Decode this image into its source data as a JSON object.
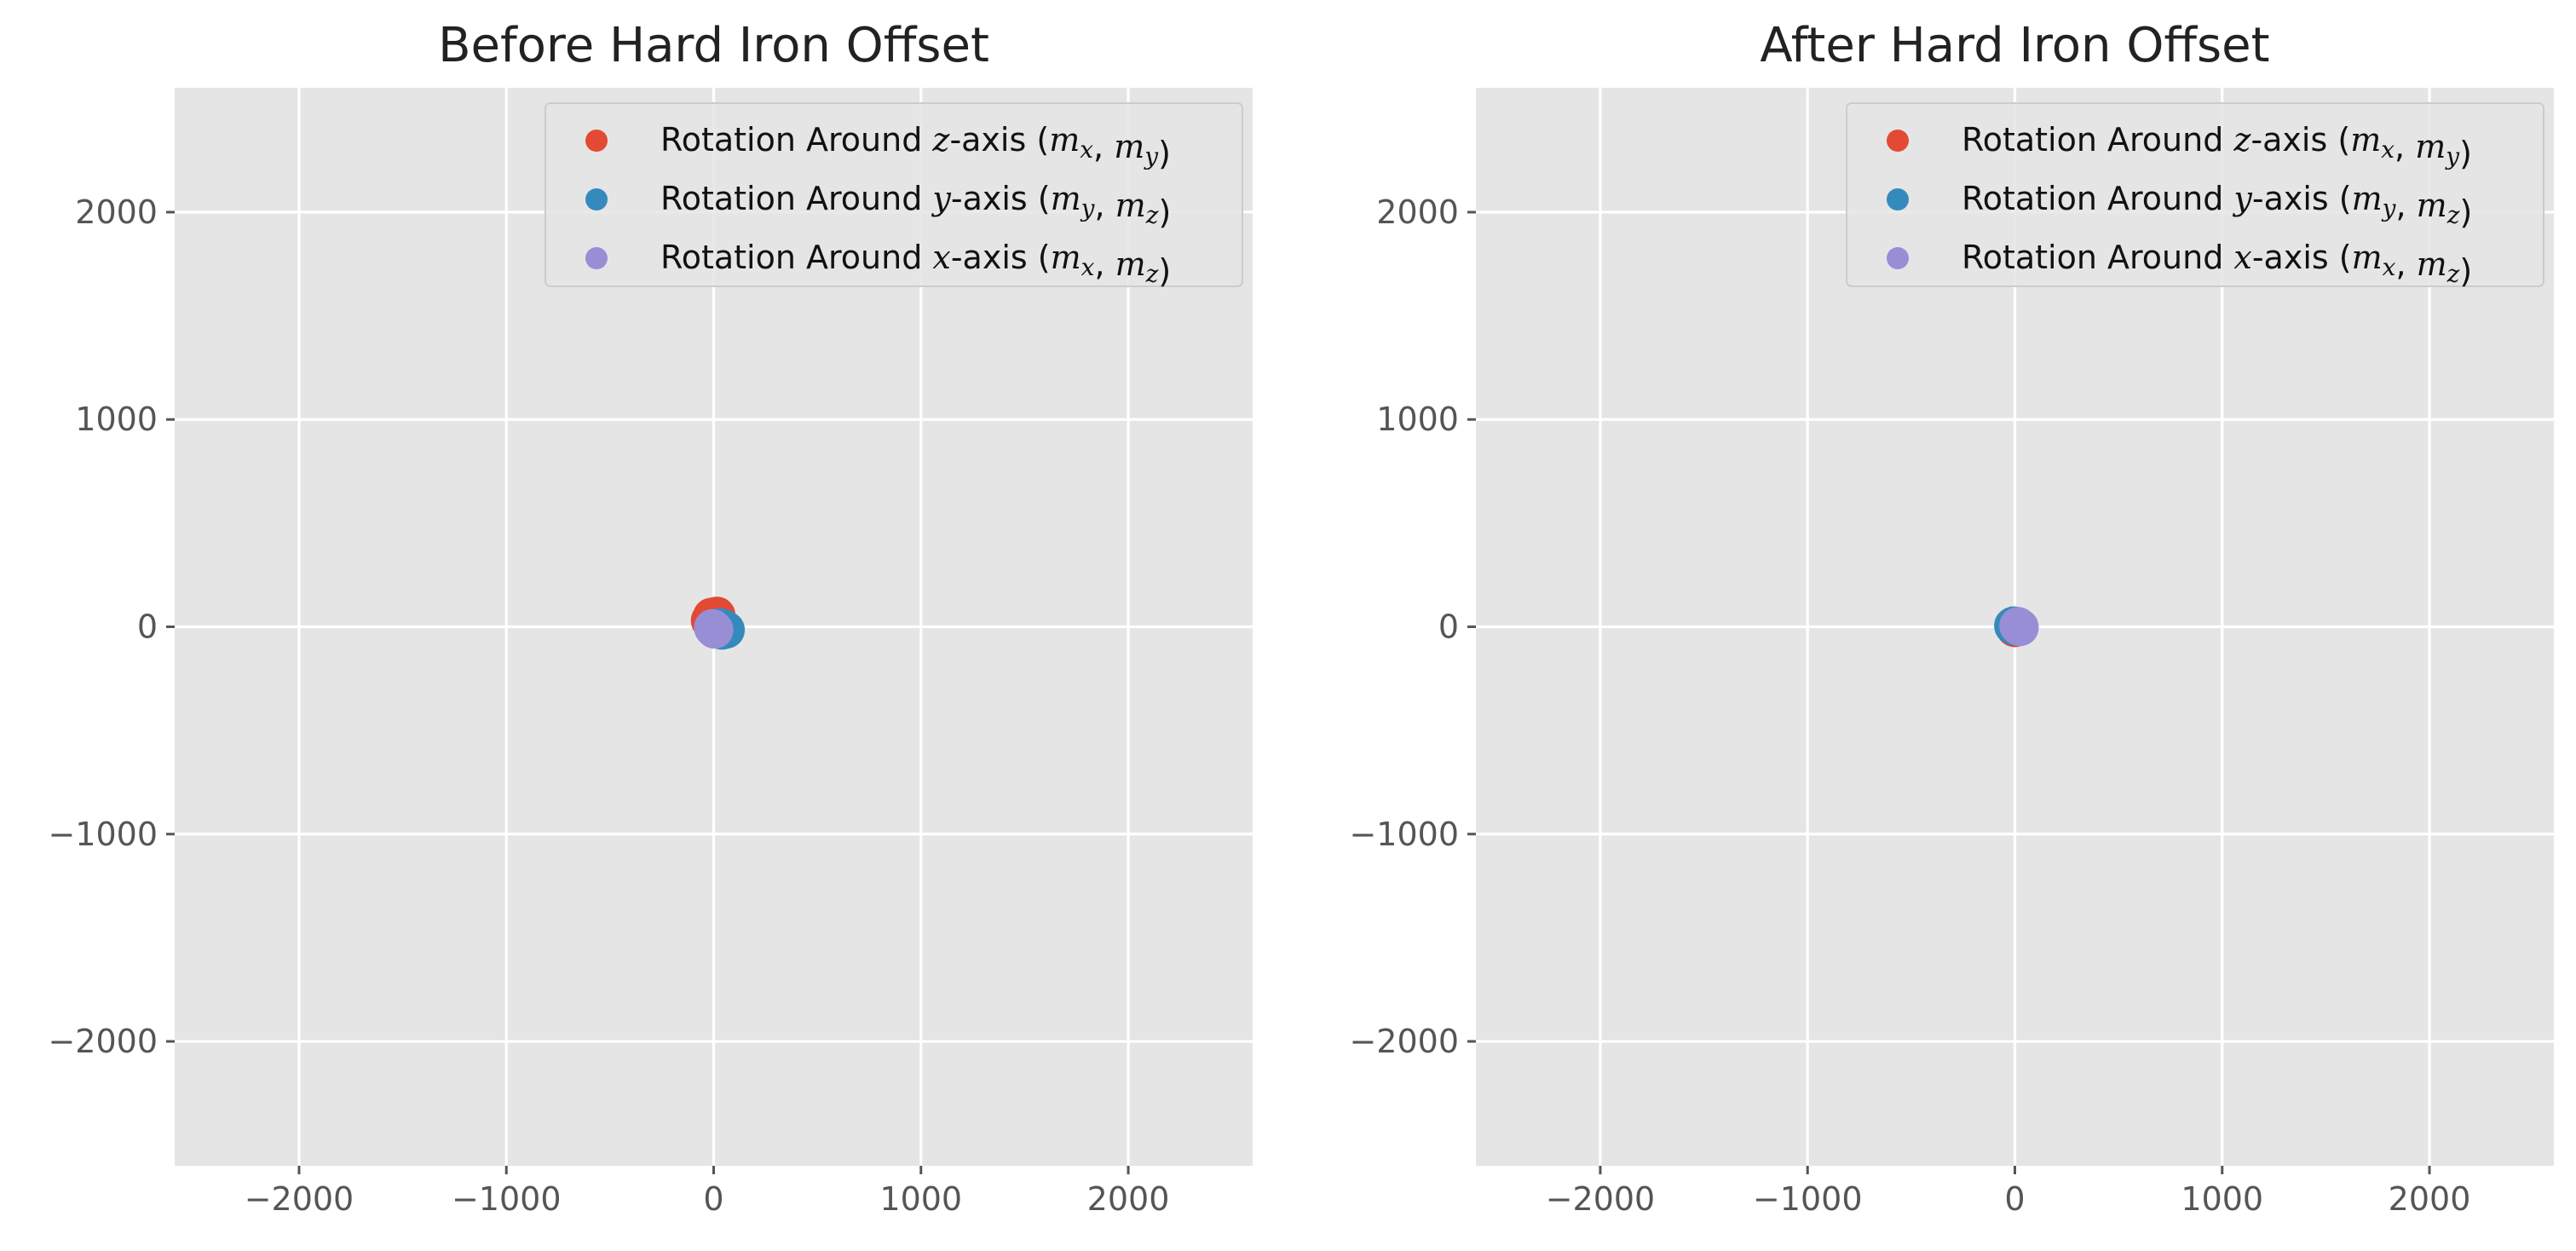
{
  "colors": {
    "background": "#e5e5e5",
    "grid": "#ffffff",
    "tick": "#555555",
    "legend_bg": "#e5e5e5",
    "legend_border": "#cccccc"
  },
  "chart_data": [
    {
      "type": "scatter",
      "title": "Before Hard Iron Offset",
      "xlim": [
        -2600,
        2600
      ],
      "ylim": [
        -2600,
        2600
      ],
      "xticks": [
        -2000,
        -1000,
        0,
        1000,
        2000
      ],
      "yticks": [
        -2000,
        -1000,
        0,
        1000,
        2000
      ],
      "xtick_labels": [
        "−2000",
        "−1000",
        "0",
        "1000",
        "2000"
      ],
      "ytick_labels": [
        "−2000",
        "−1000",
        "0",
        "1000",
        "2000"
      ],
      "grid": true,
      "legend_position": "top-right",
      "series": [
        {
          "name": "Rotation Around z-axis (mx, my)",
          "label_parts": [
            "Rotation Around ",
            "z",
            "-axis (",
            "m",
            "x",
            ", ",
            "m",
            "y",
            ")"
          ],
          "color": "#E24A33",
          "points": [
            [
              -10,
              50
            ],
            [
              10,
              40
            ],
            [
              -20,
              30
            ],
            [
              0,
              20
            ],
            [
              15,
              55
            ],
            [
              -5,
              35
            ]
          ]
        },
        {
          "name": "Rotation Around y-axis (my, mz)",
          "label_parts": [
            "Rotation Around ",
            "y",
            "-axis (",
            "m",
            "y",
            ", ",
            "m",
            "z",
            ")"
          ],
          "color": "#348ABD",
          "points": [
            [
              50,
              -10
            ],
            [
              40,
              -20
            ],
            [
              30,
              0
            ],
            [
              60,
              -15
            ],
            [
              45,
              -5
            ]
          ]
        },
        {
          "name": "Rotation Around x-axis (mx, mz)",
          "label_parts": [
            "Rotation Around ",
            "x",
            "-axis (",
            "m",
            "x",
            ", ",
            "m",
            "z",
            ")"
          ],
          "color": "#988ED5",
          "points": [
            [
              0,
              -10
            ],
            [
              5,
              -15
            ],
            [
              -5,
              -5
            ],
            [
              2,
              -12
            ]
          ]
        }
      ]
    },
    {
      "type": "scatter",
      "title": "After Hard Iron Offset",
      "xlim": [
        -2600,
        2600
      ],
      "ylim": [
        -2600,
        2600
      ],
      "xticks": [
        -2000,
        -1000,
        0,
        1000,
        2000
      ],
      "yticks": [
        -2000,
        -1000,
        0,
        1000,
        2000
      ],
      "xtick_labels": [
        "−2000",
        "−1000",
        "0",
        "1000",
        "2000"
      ],
      "ytick_labels": [
        "−2000",
        "−1000",
        "0",
        "1000",
        "2000"
      ],
      "grid": true,
      "legend_position": "top-right",
      "series": [
        {
          "name": "Rotation Around z-axis (mx, my)",
          "label_parts": [
            "Rotation Around ",
            "z",
            "-axis (",
            "m",
            "x",
            ", ",
            "m",
            "y",
            ")"
          ],
          "color": "#E24A33",
          "points": [
            [
              5,
              -5
            ],
            [
              10,
              0
            ],
            [
              0,
              -8
            ],
            [
              8,
              -3
            ]
          ]
        },
        {
          "name": "Rotation Around y-axis (my, mz)",
          "label_parts": [
            "Rotation Around ",
            "y",
            "-axis (",
            "m",
            "y",
            ", ",
            "m",
            "z",
            ")"
          ],
          "color": "#348ABD",
          "points": [
            [
              -10,
              5
            ],
            [
              0,
              0
            ],
            [
              -5,
              8
            ],
            [
              5,
              -2
            ],
            [
              10,
              5
            ]
          ]
        },
        {
          "name": "Rotation Around x-axis (mx, mz)",
          "label_parts": [
            "Rotation Around ",
            "x",
            "-axis (",
            "m",
            "x",
            ", ",
            "m",
            "z",
            ")"
          ],
          "color": "#988ED5",
          "points": [
            [
              20,
              0
            ],
            [
              15,
              5
            ],
            [
              25,
              -3
            ]
          ]
        }
      ]
    }
  ]
}
